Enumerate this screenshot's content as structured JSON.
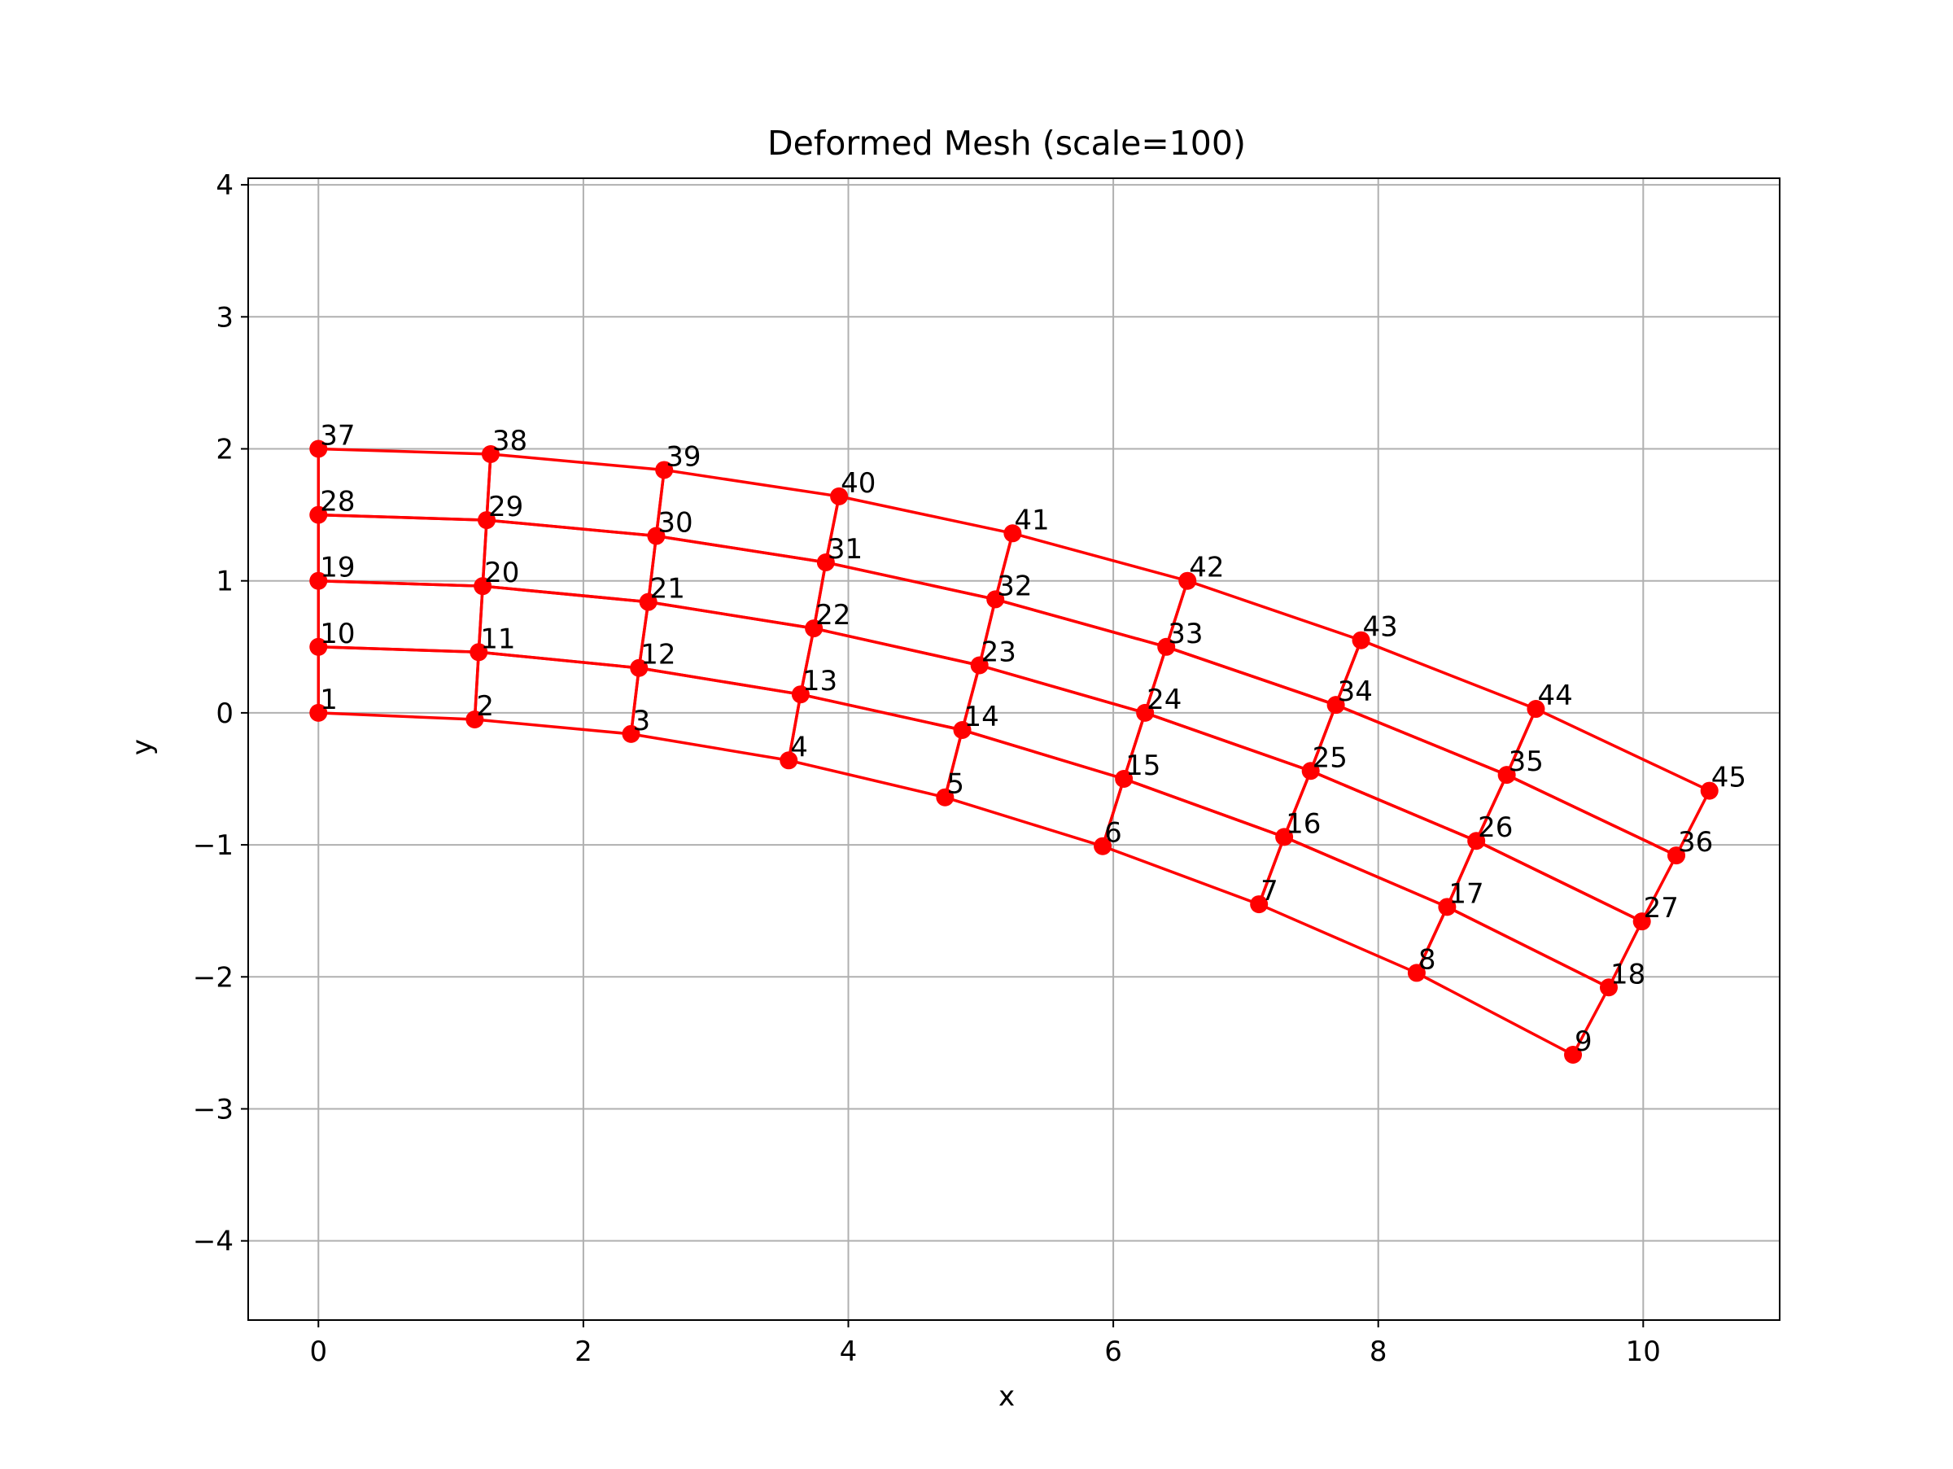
{
  "chart_data": {
    "type": "scatter",
    "title": "Deformed Mesh (scale=100)",
    "xlabel": "x",
    "ylabel": "y",
    "xlim": [
      -0.53,
      11.03
    ],
    "ylim": [
      -4.6,
      4.05
    ],
    "xticks": [
      0,
      2,
      4,
      6,
      8,
      10
    ],
    "yticks": [
      -4,
      -3,
      -2,
      -1,
      0,
      1,
      2,
      3,
      4
    ],
    "tick_labels_x": [
      "0",
      "2",
      "4",
      "6",
      "8",
      "10"
    ],
    "tick_labels_y": [
      "−4",
      "−3",
      "−2",
      "−1",
      "0",
      "1",
      "2",
      "3",
      "4"
    ],
    "grid": true,
    "colors": {
      "mesh": "#ff0000",
      "grid": "#b0b0b0",
      "axes": "#000000"
    },
    "mesh": {
      "cols": 9,
      "rows": 5,
      "connect": "structured-grid"
    },
    "nodes": [
      {
        "id": "1",
        "x": 0.0,
        "y": 0.0
      },
      {
        "id": "2",
        "x": 1.18,
        "y": -0.05
      },
      {
        "id": "3",
        "x": 2.36,
        "y": -0.16
      },
      {
        "id": "4",
        "x": 3.55,
        "y": -0.36
      },
      {
        "id": "5",
        "x": 4.73,
        "y": -0.64
      },
      {
        "id": "6",
        "x": 5.92,
        "y": -1.01
      },
      {
        "id": "7",
        "x": 7.1,
        "y": -1.45
      },
      {
        "id": "8",
        "x": 8.29,
        "y": -1.97
      },
      {
        "id": "9",
        "x": 9.47,
        "y": -2.59
      },
      {
        "id": "10",
        "x": 0.0,
        "y": 0.5
      },
      {
        "id": "11",
        "x": 1.21,
        "y": 0.46
      },
      {
        "id": "12",
        "x": 2.42,
        "y": 0.34
      },
      {
        "id": "13",
        "x": 3.64,
        "y": 0.14
      },
      {
        "id": "14",
        "x": 4.86,
        "y": -0.13
      },
      {
        "id": "15",
        "x": 6.08,
        "y": -0.5
      },
      {
        "id": "16",
        "x": 7.29,
        "y": -0.94
      },
      {
        "id": "17",
        "x": 8.52,
        "y": -1.47
      },
      {
        "id": "18",
        "x": 9.74,
        "y": -2.08
      },
      {
        "id": "19",
        "x": 0.0,
        "y": 1.0
      },
      {
        "id": "20",
        "x": 1.24,
        "y": 0.96
      },
      {
        "id": "21",
        "x": 2.49,
        "y": 0.84
      },
      {
        "id": "22",
        "x": 3.74,
        "y": 0.64
      },
      {
        "id": "23",
        "x": 4.99,
        "y": 0.36
      },
      {
        "id": "24",
        "x": 6.24,
        "y": 0.0
      },
      {
        "id": "25",
        "x": 7.49,
        "y": -0.44
      },
      {
        "id": "26",
        "x": 8.74,
        "y": -0.97
      },
      {
        "id": "27",
        "x": 9.99,
        "y": -1.58
      },
      {
        "id": "28",
        "x": 0.0,
        "y": 1.5
      },
      {
        "id": "29",
        "x": 1.27,
        "y": 1.46
      },
      {
        "id": "30",
        "x": 2.55,
        "y": 1.34
      },
      {
        "id": "31",
        "x": 3.83,
        "y": 1.14
      },
      {
        "id": "32",
        "x": 5.11,
        "y": 0.86
      },
      {
        "id": "33",
        "x": 6.4,
        "y": 0.5
      },
      {
        "id": "34",
        "x": 7.68,
        "y": 0.06
      },
      {
        "id": "35",
        "x": 8.97,
        "y": -0.47
      },
      {
        "id": "36",
        "x": 10.25,
        "y": -1.08
      },
      {
        "id": "37",
        "x": 0.0,
        "y": 2.0
      },
      {
        "id": "38",
        "x": 1.3,
        "y": 1.96
      },
      {
        "id": "39",
        "x": 2.61,
        "y": 1.84
      },
      {
        "id": "40",
        "x": 3.93,
        "y": 1.64
      },
      {
        "id": "41",
        "x": 5.24,
        "y": 1.36
      },
      {
        "id": "42",
        "x": 6.56,
        "y": 1.0
      },
      {
        "id": "43",
        "x": 7.87,
        "y": 0.55
      },
      {
        "id": "44",
        "x": 9.19,
        "y": 0.03
      },
      {
        "id": "45",
        "x": 10.5,
        "y": -0.59
      }
    ]
  }
}
